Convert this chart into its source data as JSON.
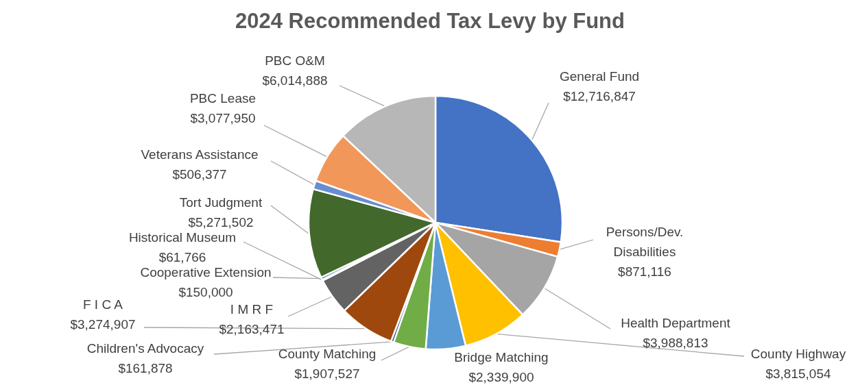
{
  "chart_data": {
    "type": "pie",
    "title": "2024 Recommended Tax Levy by Fund",
    "categories": [
      "General Fund",
      "Persons/Dev. Disabilities",
      "Health Department",
      "County Highway",
      "Bridge Matching",
      "County Matching",
      "Children's Advocacy",
      "F I C A",
      "I M R F",
      "Historical Museum",
      "Cooperative Extension",
      "Tort Judgment",
      "Veterans Assistance",
      "PBC Lease",
      "PBC O&M"
    ],
    "values": [
      12716847,
      871116,
      3988813,
      3815054,
      2339900,
      1907527,
      161878,
      3274907,
      2163471,
      61766,
      150000,
      5271502,
      506377,
      3077950,
      6014888
    ],
    "value_labels": [
      "$12,716,847",
      "$871,116",
      "$3,988,813",
      "$3,815,054",
      "$2,339,900",
      "$1,907,527",
      "$161,878",
      "$3,274,907",
      "$2,163,471",
      "$61,766",
      "$150,000",
      "$5,271,502",
      "$506,377",
      "$3,077,950",
      "$6,014,888"
    ],
    "colors": [
      "#4472c4",
      "#ed7d31",
      "#a5a5a5",
      "#ffc000",
      "#5b9bd5",
      "#70ad47",
      "#264478",
      "#9e480e",
      "#636363",
      "#997300",
      "#255e91",
      "#43682b",
      "#698ed0",
      "#f1975a",
      "#b7b7b7"
    ],
    "legend": false
  }
}
